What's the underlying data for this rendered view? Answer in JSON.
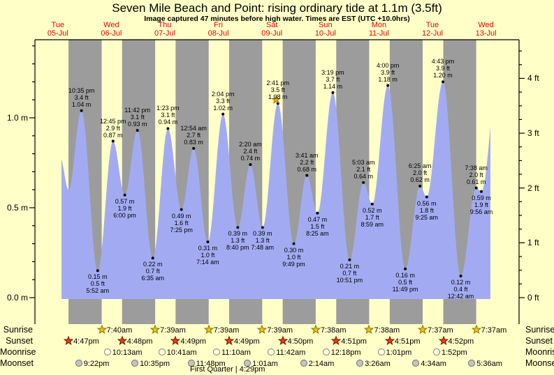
{
  "header": {
    "title": "Seven Mile Beach and Point: rising  ordinary tide at 1.1m (3.5ft)",
    "subtitle": "Image captured 47 minutes before high water. Times are EST (UTC +10.0hrs)"
  },
  "colors": {
    "background": "#ffffc8",
    "day_band": "#ffffc8",
    "night_band": "#9c9c9c",
    "tide_fill": "#a2abf2",
    "day_label_red": "#e60000",
    "axis_black": "#000000",
    "current_marker_orange": "#ffaa00",
    "sunrise_star": "#f2c40f",
    "sunset_star": "#e83e12",
    "moonrise_circle": "#ffffe0",
    "moonset_circle": "#c4c4bc"
  },
  "chart_data": {
    "type": "area",
    "title": "Seven Mile Beach and Point: rising  ordinary tide at 1.1m (3.5ft)",
    "xlabel": "",
    "ylabel_left": "meters",
    "ylabel_right": "feet",
    "ylim_m": [
      0,
      1.43
    ],
    "grid": false,
    "days": [
      {
        "name": "Tue",
        "date": "05-Jul"
      },
      {
        "name": "Wed",
        "date": "06-Jul"
      },
      {
        "name": "Thu",
        "date": "07-Jul"
      },
      {
        "name": "Fri",
        "date": "08-Jul"
      },
      {
        "name": "Sat",
        "date": "09-Jul"
      },
      {
        "name": "Sun",
        "date": "10-Jul"
      },
      {
        "name": "Mon",
        "date": "11-Jul"
      },
      {
        "name": "Tue",
        "date": "12-Jul"
      },
      {
        "name": "Wed",
        "date": "13-Jul"
      }
    ],
    "y_left_ticks": [
      {
        "label": "0.0 m",
        "value": 0.0
      },
      {
        "label": "0.5 m",
        "value": 0.5
      },
      {
        "label": "1.0 m",
        "value": 1.0
      }
    ],
    "y_right_ticks": [
      {
        "label": "0 ft",
        "value": 0
      },
      {
        "label": "1 ft",
        "value": 1
      },
      {
        "label": "2 ft",
        "value": 2
      },
      {
        "label": "3 ft",
        "value": 3
      },
      {
        "label": "4 ft",
        "value": 4
      }
    ],
    "tide_events": [
      {
        "day": 0,
        "time": "10:35 pm",
        "height_m": 1.04,
        "height_ft": 3.4,
        "type": "high"
      },
      {
        "day": 1,
        "time": "5:52 am",
        "height_m": 0.15,
        "height_ft": 0.5,
        "type": "low"
      },
      {
        "day": 1,
        "time": "12:45 pm",
        "height_m": 0.87,
        "height_ft": 2.9,
        "type": "high"
      },
      {
        "day": 1,
        "time": "6:00 pm",
        "height_m": 0.57,
        "height_ft": 1.9,
        "type": "low"
      },
      {
        "day": 1,
        "time": "11:42 pm",
        "height_m": 0.93,
        "height_ft": 3.1,
        "type": "high"
      },
      {
        "day": 2,
        "time": "6:35 am",
        "height_m": 0.22,
        "height_ft": 0.7,
        "type": "low"
      },
      {
        "day": 2,
        "time": "1:23 pm",
        "height_m": 0.94,
        "height_ft": 3.1,
        "type": "high"
      },
      {
        "day": 2,
        "time": "7:25 pm",
        "height_m": 0.49,
        "height_ft": 1.6,
        "type": "low"
      },
      {
        "day": 3,
        "time": "12:54 am",
        "height_m": 0.83,
        "height_ft": 2.7,
        "type": "high"
      },
      {
        "day": 3,
        "time": "7:14 am",
        "height_m": 0.31,
        "height_ft": 1.0,
        "type": "low"
      },
      {
        "day": 3,
        "time": "2:04 pm",
        "height_m": 1.02,
        "height_ft": 3.3,
        "type": "high"
      },
      {
        "day": 3,
        "time": "8:40 pm",
        "height_m": 0.39,
        "height_ft": 1.3,
        "type": "low"
      },
      {
        "day": 4,
        "time": "2:20 am",
        "height_m": 0.74,
        "height_ft": 2.4,
        "type": "high"
      },
      {
        "day": 4,
        "time": "7:48 am",
        "height_m": 0.39,
        "height_ft": 1.3,
        "type": "low"
      },
      {
        "day": 4,
        "time": "2:41 pm",
        "height_m": 1.08,
        "height_ft": 3.5,
        "type": "high"
      },
      {
        "day": 4,
        "time": "9:49 pm",
        "height_m": 0.3,
        "height_ft": 1.0,
        "type": "low"
      },
      {
        "day": 5,
        "time": "3:41 am",
        "height_m": 0.68,
        "height_ft": 2.2,
        "type": "high"
      },
      {
        "day": 5,
        "time": "8:25 am",
        "height_m": 0.47,
        "height_ft": 1.5,
        "type": "low"
      },
      {
        "day": 5,
        "time": "3:19 pm",
        "height_m": 1.14,
        "height_ft": 3.7,
        "type": "high"
      },
      {
        "day": 5,
        "time": "10:51 pm",
        "height_m": 0.21,
        "height_ft": 0.7,
        "type": "low"
      },
      {
        "day": 6,
        "time": "5:03 am",
        "height_m": 0.64,
        "height_ft": 2.1,
        "type": "high"
      },
      {
        "day": 6,
        "time": "8:59 am",
        "height_m": 0.52,
        "height_ft": 1.7,
        "type": "low"
      },
      {
        "day": 6,
        "time": "4:00 pm",
        "height_m": 1.18,
        "height_ft": 3.9,
        "type": "high"
      },
      {
        "day": 6,
        "time": "11:49 pm",
        "height_m": 0.16,
        "height_ft": 0.5,
        "type": "low"
      },
      {
        "day": 7,
        "time": "6:25 am",
        "height_m": 0.62,
        "height_ft": 2.0,
        "type": "high"
      },
      {
        "day": 7,
        "time": "9:25 am",
        "height_m": 0.56,
        "height_ft": 1.8,
        "type": "low"
      },
      {
        "day": 7,
        "time": "4:43 pm",
        "height_m": 1.2,
        "height_ft": 3.9,
        "type": "high"
      },
      {
        "day": 8,
        "time": "12:42 am",
        "height_m": 0.12,
        "height_ft": 0.4,
        "type": "low"
      },
      {
        "day": 8,
        "time": "7:38 am",
        "height_m": 0.61,
        "height_ft": 2.0,
        "type": "high"
      },
      {
        "day": 8,
        "time": "9:56 am",
        "height_m": 0.59,
        "height_ft": 1.9,
        "type": "low"
      }
    ],
    "curve_edge_points": {
      "start": [
        {
          "day": 0,
          "time": "1:00 pm",
          "height_m": 0.78
        },
        {
          "day": 0,
          "time": "4:50 pm",
          "height_m": 0.6
        }
      ],
      "end": [
        {
          "day": 8,
          "time": "5:20 pm",
          "height_m": 1.21
        }
      ]
    },
    "current_tide": {
      "state": "rising",
      "height_m": 1.1,
      "height_ft": 3.5,
      "marker_day": 4,
      "marker_time": "1:52 pm"
    }
  },
  "astro": {
    "row_labels": [
      "Sunrise",
      "Sunset",
      "Moonrise",
      "Moonset"
    ],
    "sunrise": [
      {
        "day": 1,
        "time": "7:40am"
      },
      {
        "day": 2,
        "time": "7:39am"
      },
      {
        "day": 3,
        "time": "7:39am"
      },
      {
        "day": 4,
        "time": "7:39am"
      },
      {
        "day": 5,
        "time": "7:38am"
      },
      {
        "day": 6,
        "time": "7:38am"
      },
      {
        "day": 7,
        "time": "7:37am"
      },
      {
        "day": 8,
        "time": "7:37am"
      }
    ],
    "sunset": [
      {
        "day": 0,
        "time": "4:47pm"
      },
      {
        "day": 1,
        "time": "4:48pm"
      },
      {
        "day": 2,
        "time": "4:49pm"
      },
      {
        "day": 3,
        "time": "4:49pm"
      },
      {
        "day": 4,
        "time": "4:50pm"
      },
      {
        "day": 5,
        "time": "4:51pm"
      },
      {
        "day": 6,
        "time": "4:51pm"
      },
      {
        "day": 7,
        "time": "4:52pm"
      }
    ],
    "moonrise": [
      {
        "day": 1,
        "time": "10:13am"
      },
      {
        "day": 2,
        "time": "10:41am"
      },
      {
        "day": 3,
        "time": "11:10am"
      },
      {
        "day": 4,
        "time": "11:42am"
      },
      {
        "day": 5,
        "time": "12:18pm"
      },
      {
        "day": 6,
        "time": "1:01pm"
      },
      {
        "day": 7,
        "time": "1:52pm"
      }
    ],
    "moonset": [
      {
        "day": 0,
        "time": "9:22pm"
      },
      {
        "day": 1,
        "time": "10:35pm"
      },
      {
        "day": 2,
        "time": "11:48pm"
      },
      {
        "day": 4,
        "time": "1:01am"
      },
      {
        "day": 5,
        "time": "2:14am"
      },
      {
        "day": 6,
        "time": "3:26am"
      },
      {
        "day": 7,
        "time": "4:34am"
      },
      {
        "day": 8,
        "time": "5:36am"
      }
    ],
    "moon_phase": "First Quarter | 4:29pm"
  }
}
